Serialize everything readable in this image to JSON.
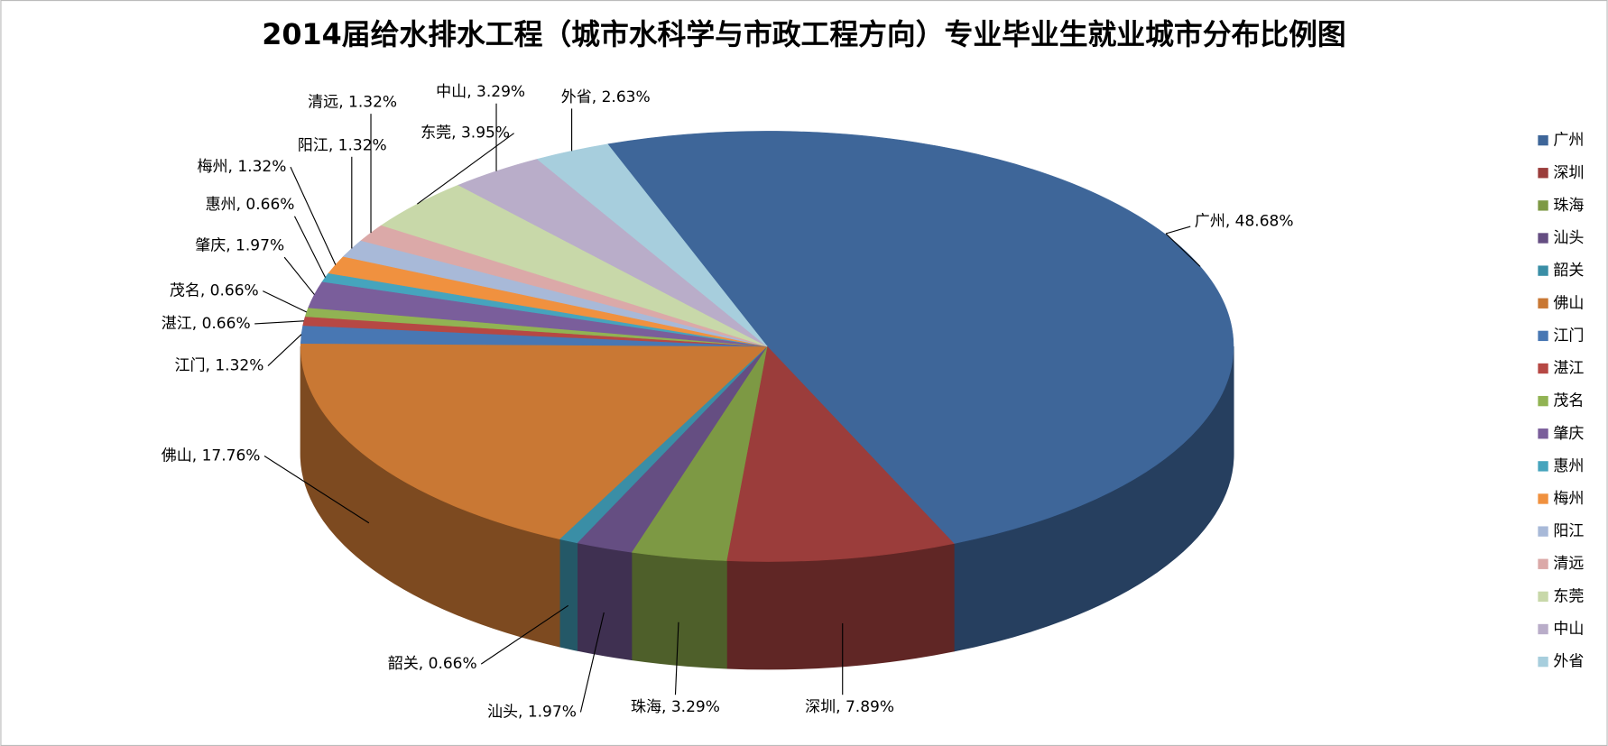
{
  "chart_data": {
    "type": "pie3d",
    "title": "2014届给水排水工程（城市水科学与市政工程方向）专业毕业生就业城市分布比例图",
    "categories": [
      "广州",
      "深圳",
      "珠海",
      "汕头",
      "韶关",
      "佛山",
      "江门",
      "湛江",
      "茂名",
      "肇庆",
      "惠州",
      "梅州",
      "阳江",
      "清远",
      "东莞",
      "中山",
      "外省"
    ],
    "values": [
      48.68,
      7.89,
      3.29,
      1.97,
      0.66,
      17.76,
      1.32,
      0.66,
      0.66,
      1.97,
      0.66,
      1.32,
      1.32,
      1.32,
      3.95,
      3.29,
      2.63
    ],
    "value_labels": [
      "广州, 48.68%",
      "深圳, 7.89%",
      "珠海, 3.29%",
      "汕头, 1.97%",
      "韶关, 0.66%",
      "佛山, 17.76%",
      "江门, 1.32%",
      "湛江, 0.66%",
      "茂名, 0.66%",
      "肇庆, 1.97%",
      "惠州, 0.66%",
      "梅州, 1.32%",
      "阳江, 1.32%",
      "清远, 1.32%",
      "东莞, 3.95%",
      "中山, 3.29%",
      "外省, 2.63%"
    ],
    "colors": [
      "#3e6699",
      "#9b3d3b",
      "#7d9944",
      "#654e82",
      "#3a8ea6",
      "#c97834",
      "#4877b3",
      "#b64844",
      "#91b353",
      "#7a5e9b",
      "#46a4bd",
      "#f0913f",
      "#a8b9d8",
      "#dba9a8",
      "#c8d8a9",
      "#b9adc9",
      "#a7cedd"
    ],
    "legend": "right"
  }
}
